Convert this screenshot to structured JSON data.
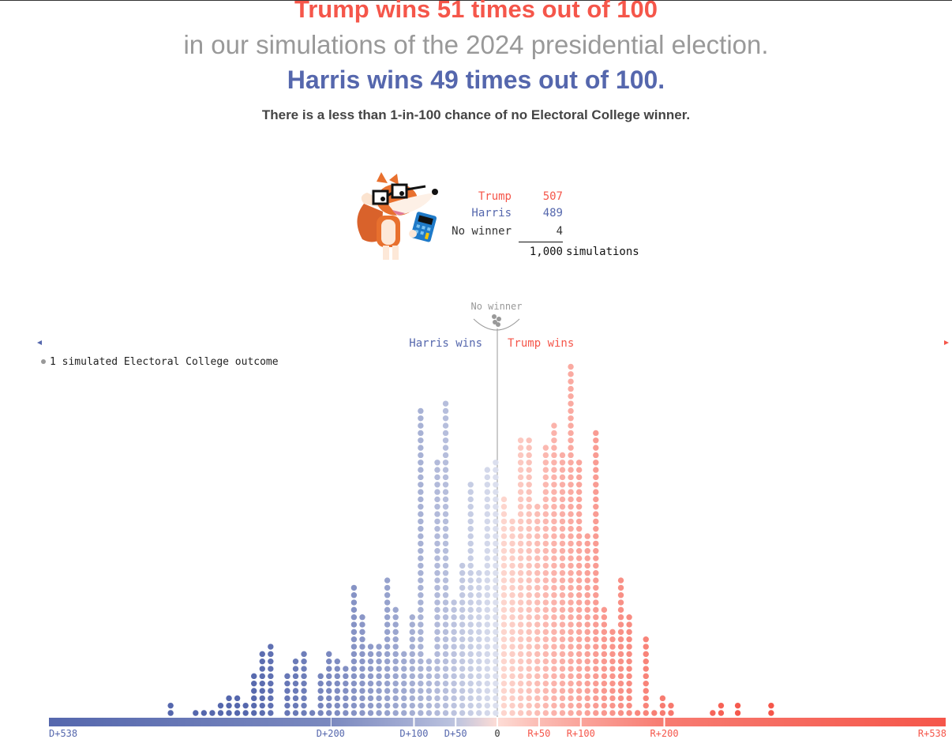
{
  "headline": {
    "trump_line": "Trump wins 51 times out of 100",
    "middle_line": "in our simulations of the 2024 presidential election.",
    "harris_line": "Harris wins 49 times out of 100.",
    "note": "There is a less than 1-in-100 chance of no Electoral College winner."
  },
  "tally": {
    "rows": [
      {
        "label": "Trump",
        "value": "507",
        "color": "#f5564a"
      },
      {
        "label": "Harris",
        "value": "489",
        "color": "#5567ad"
      },
      {
        "label": "No winner",
        "value": "4",
        "color": "#333333"
      }
    ],
    "total": "1,000",
    "total_label": "simulations"
  },
  "colors": {
    "harris": "#5567ad",
    "trump": "#f5564a",
    "no_winner": "#999999"
  },
  "chart_data": {
    "type": "scatter",
    "subtype": "dot-histogram",
    "legend": "1 simulated Electoral College outcome",
    "no_winner_label": "No winner",
    "no_winner_count": 4,
    "harris_label": "Harris wins",
    "trump_label": "Trump wins",
    "xlim": [
      -538,
      538
    ],
    "tick_labels": [
      {
        "value": -538,
        "label": "D+538"
      },
      {
        "value": -200,
        "label": "D+200"
      },
      {
        "value": -100,
        "label": "D+100"
      },
      {
        "value": -50,
        "label": "D+50"
      },
      {
        "value": 0,
        "label": "0"
      },
      {
        "value": 50,
        "label": "R+50"
      },
      {
        "value": 100,
        "label": "R+100"
      },
      {
        "value": 200,
        "label": "R+200"
      },
      {
        "value": 538,
        "label": "R+538"
      }
    ],
    "bins": [
      {
        "margin": -392,
        "count": 2
      },
      {
        "margin": -362,
        "count": 1
      },
      {
        "margin": -352,
        "count": 1
      },
      {
        "margin": -342,
        "count": 1
      },
      {
        "margin": -332,
        "count": 2
      },
      {
        "margin": -322,
        "count": 3
      },
      {
        "margin": -312,
        "count": 3
      },
      {
        "margin": -302,
        "count": 2
      },
      {
        "margin": -292,
        "count": 6
      },
      {
        "margin": -282,
        "count": 9
      },
      {
        "margin": -272,
        "count": 10
      },
      {
        "margin": -252,
        "count": 6
      },
      {
        "margin": -242,
        "count": 8
      },
      {
        "margin": -232,
        "count": 9
      },
      {
        "margin": -222,
        "count": 1
      },
      {
        "margin": -212,
        "count": 6
      },
      {
        "margin": -202,
        "count": 9
      },
      {
        "margin": -192,
        "count": 8
      },
      {
        "margin": -182,
        "count": 7
      },
      {
        "margin": -172,
        "count": 18
      },
      {
        "margin": -162,
        "count": 14
      },
      {
        "margin": -152,
        "count": 10
      },
      {
        "margin": -142,
        "count": 10
      },
      {
        "margin": -132,
        "count": 19
      },
      {
        "margin": -122,
        "count": 15
      },
      {
        "margin": -112,
        "count": 9
      },
      {
        "margin": -102,
        "count": 14
      },
      {
        "margin": -92,
        "count": 42
      },
      {
        "margin": -82,
        "count": 8
      },
      {
        "margin": -72,
        "count": 35
      },
      {
        "margin": -62,
        "count": 43
      },
      {
        "margin": -52,
        "count": 16
      },
      {
        "margin": -42,
        "count": 21
      },
      {
        "margin": -32,
        "count": 32
      },
      {
        "margin": -22,
        "count": 20
      },
      {
        "margin": -12,
        "count": 34
      },
      {
        "margin": -2,
        "count": 35
      },
      {
        "margin": 8,
        "count": 30
      },
      {
        "margin": 18,
        "count": 27
      },
      {
        "margin": 28,
        "count": 38
      },
      {
        "margin": 38,
        "count": 38
      },
      {
        "margin": 48,
        "count": 29
      },
      {
        "margin": 58,
        "count": 37
      },
      {
        "margin": 68,
        "count": 40
      },
      {
        "margin": 78,
        "count": 36
      },
      {
        "margin": 88,
        "count": 48
      },
      {
        "margin": 98,
        "count": 35
      },
      {
        "margin": 108,
        "count": 25
      },
      {
        "margin": 118,
        "count": 39
      },
      {
        "margin": 128,
        "count": 15
      },
      {
        "margin": 138,
        "count": 12
      },
      {
        "margin": 148,
        "count": 19
      },
      {
        "margin": 158,
        "count": 14
      },
      {
        "margin": 168,
        "count": 1
      },
      {
        "margin": 178,
        "count": 11
      },
      {
        "margin": 188,
        "count": 1
      },
      {
        "margin": 198,
        "count": 3
      },
      {
        "margin": 208,
        "count": 2
      },
      {
        "margin": 258,
        "count": 1
      },
      {
        "margin": 268,
        "count": 2
      },
      {
        "margin": 288,
        "count": 2
      },
      {
        "margin": 328,
        "count": 2
      }
    ]
  }
}
